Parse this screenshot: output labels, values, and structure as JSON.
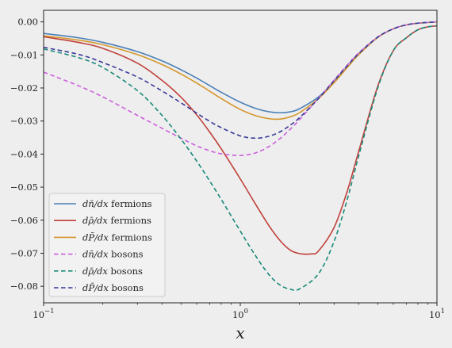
{
  "chart_data": {
    "type": "line",
    "title": "",
    "xlabel": "x",
    "ylabel": "",
    "xscale": "log",
    "xlim": [
      0.1,
      10
    ],
    "ylim": [
      -0.085,
      0.0035
    ],
    "grid": false,
    "legend_position": "lower-left",
    "xticks": [
      {
        "value": 0.1,
        "base": "10",
        "exp": "−1"
      },
      {
        "value": 1,
        "base": "10",
        "exp": "0"
      },
      {
        "value": 10,
        "base": "10",
        "exp": "1"
      }
    ],
    "yticks": [
      {
        "value": 0.0,
        "label": "0.00"
      },
      {
        "value": -0.01,
        "label": "−0.01"
      },
      {
        "value": -0.02,
        "label": "−0.02"
      },
      {
        "value": -0.03,
        "label": "−0.03"
      },
      {
        "value": -0.04,
        "label": "−0.04"
      },
      {
        "value": -0.05,
        "label": "−0.05"
      },
      {
        "value": -0.06,
        "label": "−0.06"
      },
      {
        "value": -0.07,
        "label": "−0.07"
      },
      {
        "value": -0.08,
        "label": "−0.08"
      }
    ],
    "series": [
      {
        "name": "dn̄/dx fermions",
        "legend_math": "dn̄/dx",
        "legend_suffix": "fermions",
        "color": "#4a7fb8",
        "dash": "solid",
        "points": [
          [
            0.1,
            -0.0035
          ],
          [
            0.15,
            -0.0048
          ],
          [
            0.2,
            -0.0062
          ],
          [
            0.3,
            -0.009
          ],
          [
            0.4,
            -0.0118
          ],
          [
            0.5,
            -0.0145
          ],
          [
            0.6,
            -0.017
          ],
          [
            0.7,
            -0.0193
          ],
          [
            0.8,
            -0.0213
          ],
          [
            1.0,
            -0.0243
          ],
          [
            1.2,
            -0.0262
          ],
          [
            1.4,
            -0.0272
          ],
          [
            1.6,
            -0.0275
          ],
          [
            1.8,
            -0.0272
          ],
          [
            2.0,
            -0.0263
          ],
          [
            2.5,
            -0.0227
          ],
          [
            3.0,
            -0.0182
          ],
          [
            3.5,
            -0.0137
          ],
          [
            4.0,
            -0.0099
          ],
          [
            5.0,
            -0.0047
          ],
          [
            6.0,
            -0.0021
          ],
          [
            7.0,
            -0.0009
          ],
          [
            8.0,
            -0.0004
          ],
          [
            10.0,
            0.0
          ]
        ]
      },
      {
        "name": "dρ̄/dx fermions",
        "legend_math": "dρ̄/dx",
        "legend_suffix": "fermions",
        "color": "#c0403a",
        "dash": "solid",
        "points": [
          [
            0.1,
            -0.0045
          ],
          [
            0.15,
            -0.0062
          ],
          [
            0.2,
            -0.008
          ],
          [
            0.3,
            -0.0125
          ],
          [
            0.4,
            -0.0177
          ],
          [
            0.5,
            -0.0228
          ],
          [
            0.6,
            -0.0281
          ],
          [
            0.7,
            -0.0334
          ],
          [
            0.8,
            -0.0384
          ],
          [
            1.0,
            -0.0475
          ],
          [
            1.2,
            -0.0553
          ],
          [
            1.4,
            -0.0617
          ],
          [
            1.6,
            -0.0663
          ],
          [
            1.8,
            -0.0691
          ],
          [
            2.0,
            -0.0701
          ],
          [
            2.3,
            -0.0702
          ],
          [
            2.5,
            -0.0693
          ],
          [
            3.0,
            -0.0622
          ],
          [
            3.5,
            -0.0512
          ],
          [
            4.0,
            -0.0392
          ],
          [
            5.0,
            -0.0195
          ],
          [
            6.0,
            -0.0087
          ],
          [
            7.0,
            -0.0048
          ],
          [
            8.0,
            -0.0024
          ],
          [
            9.0,
            -0.0015
          ],
          [
            10.0,
            -0.0012
          ]
        ]
      },
      {
        "name": "dP̄/dx fermions",
        "legend_math": "dP̄/dx",
        "legend_suffix": "fermions",
        "color": "#d4962a",
        "dash": "solid",
        "points": [
          [
            0.1,
            -0.0042
          ],
          [
            0.15,
            -0.0055
          ],
          [
            0.2,
            -0.0069
          ],
          [
            0.3,
            -0.0099
          ],
          [
            0.4,
            -0.0129
          ],
          [
            0.5,
            -0.0158
          ],
          [
            0.6,
            -0.0185
          ],
          [
            0.7,
            -0.021
          ],
          [
            0.8,
            -0.0232
          ],
          [
            1.0,
            -0.0265
          ],
          [
            1.2,
            -0.0284
          ],
          [
            1.4,
            -0.0293
          ],
          [
            1.6,
            -0.0294
          ],
          [
            1.8,
            -0.0287
          ],
          [
            2.0,
            -0.0275
          ],
          [
            2.5,
            -0.0232
          ],
          [
            3.0,
            -0.0184
          ],
          [
            3.5,
            -0.0138
          ],
          [
            4.0,
            -0.0099
          ],
          [
            5.0,
            -0.0047
          ],
          [
            6.0,
            -0.0021
          ],
          [
            7.0,
            -0.0009
          ],
          [
            8.0,
            -0.0004
          ],
          [
            10.0,
            0.0
          ]
        ]
      },
      {
        "name": "dn̄/dx bosons",
        "legend_math": "dn̄/dx",
        "legend_suffix": "bosons",
        "color": "#cc5fdc",
        "dash": "dashed",
        "points": [
          [
            0.1,
            -0.0152
          ],
          [
            0.15,
            -0.0193
          ],
          [
            0.2,
            -0.0227
          ],
          [
            0.3,
            -0.0283
          ],
          [
            0.4,
            -0.0322
          ],
          [
            0.5,
            -0.0352
          ],
          [
            0.6,
            -0.0375
          ],
          [
            0.7,
            -0.039
          ],
          [
            0.8,
            -0.0399
          ],
          [
            1.0,
            -0.0404
          ],
          [
            1.2,
            -0.0396
          ],
          [
            1.4,
            -0.0377
          ],
          [
            1.6,
            -0.0352
          ],
          [
            1.8,
            -0.0324
          ],
          [
            2.0,
            -0.0296
          ],
          [
            2.5,
            -0.0231
          ],
          [
            3.0,
            -0.0176
          ],
          [
            3.5,
            -0.0131
          ],
          [
            4.0,
            -0.0094
          ],
          [
            5.0,
            -0.0046
          ],
          [
            6.0,
            -0.0021
          ],
          [
            7.0,
            -0.0009
          ],
          [
            8.0,
            -0.0004
          ],
          [
            10.0,
            0.0
          ]
        ]
      },
      {
        "name": "dρ̄/dx bosons",
        "legend_math": "dρ̄/dx",
        "legend_suffix": "bosons",
        "color": "#1a8a7a",
        "dash": "dashed",
        "points": [
          [
            0.1,
            -0.0082
          ],
          [
            0.15,
            -0.0108
          ],
          [
            0.2,
            -0.0138
          ],
          [
            0.3,
            -0.0208
          ],
          [
            0.4,
            -0.0283
          ],
          [
            0.5,
            -0.0355
          ],
          [
            0.6,
            -0.0421
          ],
          [
            0.7,
            -0.0482
          ],
          [
            0.8,
            -0.0537
          ],
          [
            1.0,
            -0.0633
          ],
          [
            1.2,
            -0.0709
          ],
          [
            1.4,
            -0.0765
          ],
          [
            1.6,
            -0.0797
          ],
          [
            1.8,
            -0.0809
          ],
          [
            2.0,
            -0.0808
          ],
          [
            2.5,
            -0.0762
          ],
          [
            3.0,
            -0.0664
          ],
          [
            3.5,
            -0.0537
          ],
          [
            4.0,
            -0.0406
          ],
          [
            5.0,
            -0.02
          ],
          [
            6.0,
            -0.0087
          ],
          [
            7.0,
            -0.0048
          ],
          [
            8.0,
            -0.0024
          ],
          [
            9.0,
            -0.0015
          ],
          [
            10.0,
            -0.0012
          ]
        ]
      },
      {
        "name": "dP̄/dx bosons",
        "legend_math": "dP̄/dx",
        "legend_suffix": "bosons",
        "color": "#3a3a9a",
        "dash": "dashed",
        "points": [
          [
            0.1,
            -0.0077
          ],
          [
            0.15,
            -0.0098
          ],
          [
            0.2,
            -0.0123
          ],
          [
            0.3,
            -0.0167
          ],
          [
            0.4,
            -0.0209
          ],
          [
            0.5,
            -0.0245
          ],
          [
            0.6,
            -0.0276
          ],
          [
            0.7,
            -0.0301
          ],
          [
            0.8,
            -0.032
          ],
          [
            1.0,
            -0.0345
          ],
          [
            1.2,
            -0.0352
          ],
          [
            1.4,
            -0.0346
          ],
          [
            1.6,
            -0.0332
          ],
          [
            1.8,
            -0.0312
          ],
          [
            2.0,
            -0.029
          ],
          [
            2.5,
            -0.0232
          ],
          [
            3.0,
            -0.0178
          ],
          [
            3.5,
            -0.0133
          ],
          [
            4.0,
            -0.0096
          ],
          [
            5.0,
            -0.0046
          ],
          [
            6.0,
            -0.0021
          ],
          [
            7.0,
            -0.0009
          ],
          [
            8.0,
            -0.0004
          ],
          [
            10.0,
            0.0
          ]
        ]
      }
    ]
  }
}
